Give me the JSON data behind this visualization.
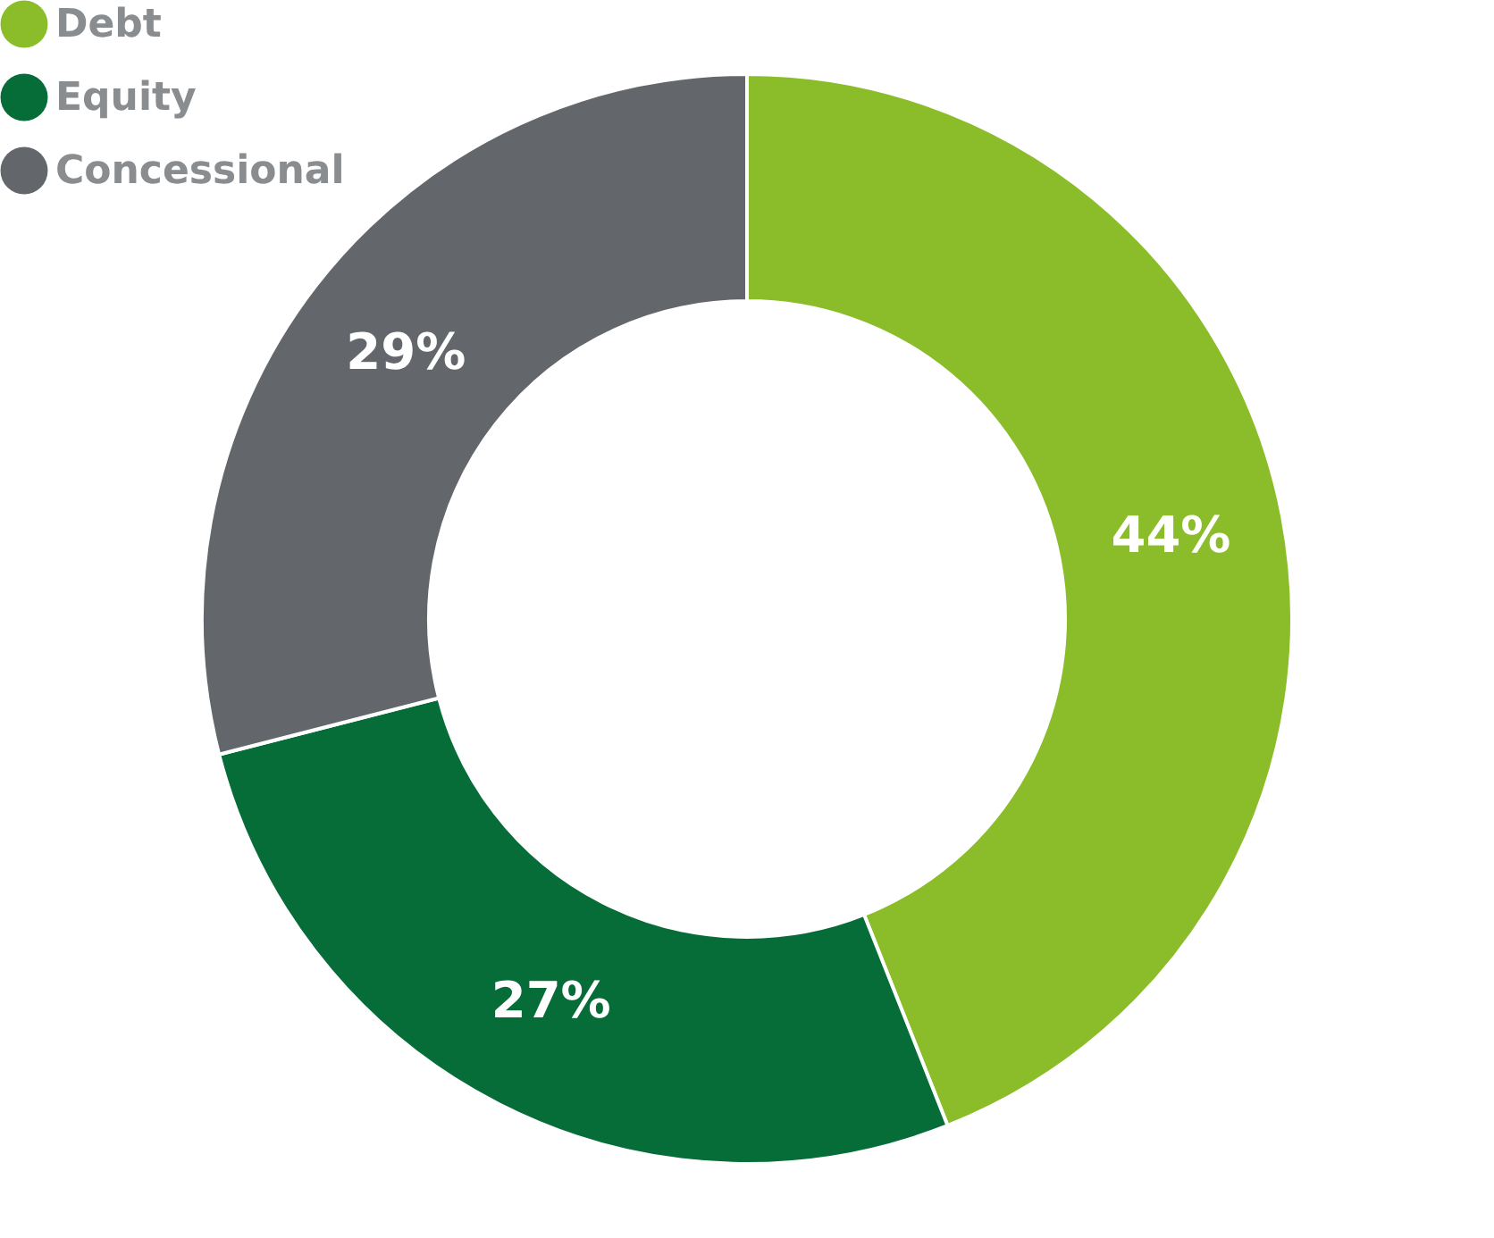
{
  "chart_data": {
    "type": "donut",
    "categories": [
      "Debt",
      "Equity",
      "Concessional"
    ],
    "values": [
      44,
      27,
      29
    ],
    "colors": [
      "#8abd29",
      "#066c38",
      "#63666a"
    ],
    "value_labels": [
      "44%",
      "27%",
      "29%"
    ],
    "legend": "top left"
  }
}
